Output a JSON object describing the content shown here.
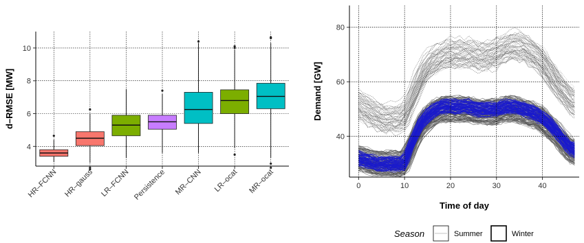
{
  "chart_data": [
    {
      "type": "box",
      "ylabel": "d–RMSE [MW]",
      "ylim": [
        2.8,
        11.0
      ],
      "yticks": [
        4,
        6,
        8,
        10
      ],
      "grid": true,
      "categories": [
        "HR–FCNN",
        "HR–gauss",
        "LR–FCNN",
        "Persistence",
        "MR–CNN",
        "LR–ocat",
        "MR–ocat"
      ],
      "colors": [
        "#F8766D",
        "#F8766D",
        "#7CAE00",
        "#C77CFF",
        "#00BFC4",
        "#7CAE00",
        "#00BFC4"
      ],
      "boxes": [
        {
          "whisker_low": 3.05,
          "q1": 3.4,
          "median": 3.6,
          "q3": 3.8,
          "whisker_high": 4.4,
          "outliers": [
            4.65
          ]
        },
        {
          "whisker_low": 3.0,
          "q1": 4.05,
          "median": 4.5,
          "q3": 4.9,
          "whisker_high": 6.0,
          "outliers": [
            2.6,
            2.7,
            6.25
          ]
        },
        {
          "whisker_low": 3.3,
          "q1": 4.65,
          "median": 5.3,
          "q3": 5.9,
          "whisker_high": 7.5,
          "outliers": []
        },
        {
          "whisker_low": 3.6,
          "q1": 5.05,
          "median": 5.5,
          "q3": 5.9,
          "whisker_high": 7.2,
          "outliers": [
            7.4
          ]
        },
        {
          "whisker_low": 3.6,
          "q1": 5.4,
          "median": 6.25,
          "q3": 7.3,
          "whisker_high": 10.3,
          "outliers": [
            10.4
          ]
        },
        {
          "whisker_low": 3.9,
          "q1": 6.0,
          "median": 6.8,
          "q3": 7.45,
          "whisker_high": 9.9,
          "outliers": [
            3.5,
            10.0,
            10.1
          ]
        },
        {
          "whisker_low": 3.3,
          "q1": 6.3,
          "median": 7.05,
          "q3": 7.85,
          "whisker_high": 10.3,
          "outliers": [
            2.7,
            2.95,
            10.6,
            10.65
          ]
        }
      ]
    },
    {
      "type": "line",
      "xlabel": "Time of day",
      "ylabel": "Demand [GW]",
      "xlim": [
        -2,
        48
      ],
      "ylim": [
        25,
        88
      ],
      "xticks": [
        0,
        10,
        20,
        30,
        40
      ],
      "yticks": [
        40,
        60,
        80
      ],
      "grid": true,
      "legend": {
        "title": "Season",
        "position": "bottom",
        "entries": [
          "Summer",
          "Winter"
        ]
      },
      "series_summary": {
        "x": [
          0,
          2,
          4,
          6,
          8,
          10,
          12,
          14,
          16,
          18,
          20,
          22,
          24,
          26,
          28,
          30,
          32,
          34,
          36,
          38,
          40,
          42,
          44,
          46,
          47
        ],
        "winter_mean": [
          52,
          50,
          48,
          47,
          47,
          48,
          56,
          64,
          68,
          70,
          71,
          71,
          71,
          70,
          70,
          71,
          73,
          74,
          73,
          71,
          68,
          63,
          58,
          54,
          53
        ],
        "summer_mean": [
          32,
          31,
          30,
          30,
          30,
          30,
          38,
          45,
          48,
          50,
          50,
          50,
          50,
          49,
          49,
          49,
          50,
          50,
          49,
          48,
          46,
          43,
          39,
          35,
          34
        ],
        "highlight_mean": [
          32,
          31,
          30,
          30,
          30,
          30,
          39,
          46,
          49,
          51,
          51,
          51,
          51,
          50,
          50,
          50,
          51,
          51,
          50,
          49,
          47,
          44,
          40,
          36,
          35
        ],
        "highlight_color": "#1a1acc",
        "curve_count": {
          "winter": 60,
          "summer": 110,
          "highlight": 60
        }
      }
    }
  ]
}
